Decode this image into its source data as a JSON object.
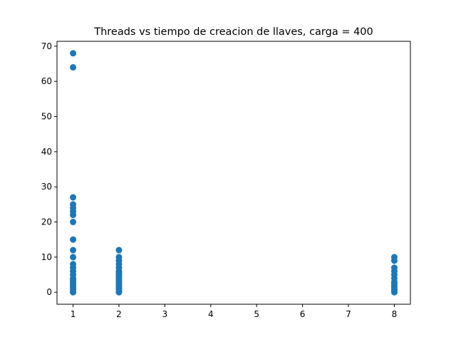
{
  "chart_data": {
    "type": "scatter",
    "title": "Threads vs tiempo de creacion de llaves, carga = 400",
    "xlabel": "",
    "ylabel": "",
    "xlim": [
      0.65,
      8.35
    ],
    "ylim": [
      -3.4,
      71.4
    ],
    "xticks": [
      1,
      2,
      3,
      4,
      5,
      6,
      7,
      8
    ],
    "yticks": [
      0,
      10,
      20,
      30,
      40,
      50,
      60,
      70
    ],
    "grid": false,
    "marker_color": "#1f77b4",
    "series": [
      {
        "points": [
          [
            1,
            0
          ],
          [
            1,
            0.5
          ],
          [
            1,
            1
          ],
          [
            1,
            1.5
          ],
          [
            1,
            2
          ],
          [
            1,
            2.5
          ],
          [
            1,
            3
          ],
          [
            1,
            3.5
          ],
          [
            1,
            4
          ],
          [
            1,
            5
          ],
          [
            1,
            6
          ],
          [
            1,
            7
          ],
          [
            1,
            8
          ],
          [
            1,
            10
          ],
          [
            1,
            12
          ],
          [
            1,
            15
          ],
          [
            1,
            20
          ],
          [
            1,
            22
          ],
          [
            1,
            23
          ],
          [
            1,
            24
          ],
          [
            1,
            25
          ],
          [
            1,
            27
          ],
          [
            1,
            64
          ],
          [
            1,
            68
          ],
          [
            2,
            0
          ],
          [
            2,
            0.5
          ],
          [
            2,
            1
          ],
          [
            2,
            1.5
          ],
          [
            2,
            2
          ],
          [
            2,
            2.5
          ],
          [
            2,
            3
          ],
          [
            2,
            3.5
          ],
          [
            2,
            4
          ],
          [
            2,
            4.5
          ],
          [
            2,
            5
          ],
          [
            2,
            5.5
          ],
          [
            2,
            6
          ],
          [
            2,
            7
          ],
          [
            2,
            8
          ],
          [
            2,
            9
          ],
          [
            2,
            10
          ],
          [
            2,
            12
          ],
          [
            8,
            0
          ],
          [
            8,
            0.5
          ],
          [
            8,
            1
          ],
          [
            8,
            1.5
          ],
          [
            8,
            2
          ],
          [
            8,
            2.5
          ],
          [
            8,
            3
          ],
          [
            8,
            4
          ],
          [
            8,
            5
          ],
          [
            8,
            6
          ],
          [
            8,
            7
          ],
          [
            8,
            9
          ],
          [
            8,
            10
          ]
        ]
      }
    ]
  }
}
